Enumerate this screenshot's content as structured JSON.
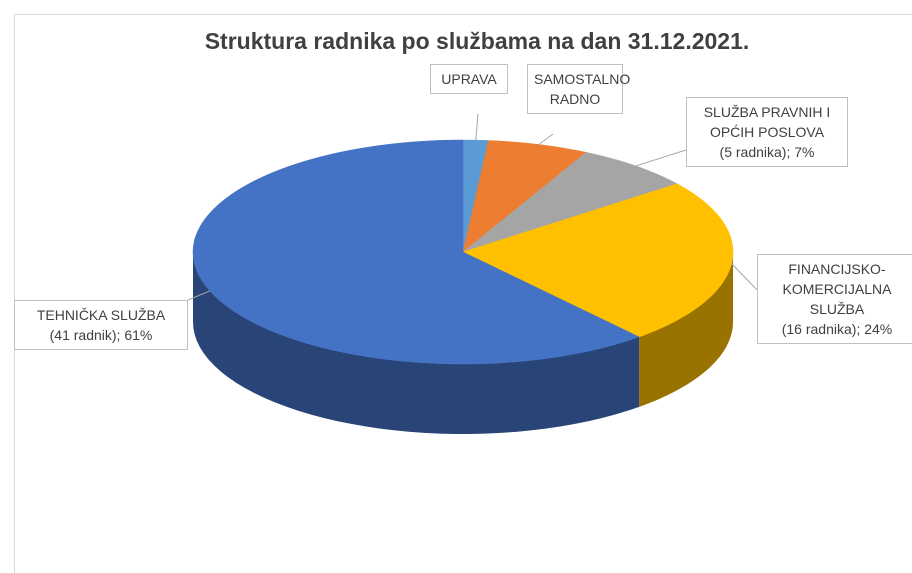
{
  "chart_data": {
    "type": "pie3d",
    "title": "Struktura radnika po službama na dan 31.12.2021.",
    "categories": [
      "UPRAVA",
      "SAMOSTALNO RADNO",
      "SLUŽBA PRAVNIH I OPĆIH POSLOVA",
      "FINANCIJSKO-KOMERCIJALNA SLUŽBA",
      "TEHNIČKA SLUŽBA"
    ],
    "values": [
      1.5,
      6,
      7,
      24,
      61
    ],
    "value_labels": [
      null,
      null,
      "(5 radnika); 7%",
      "(16 radnika); 24%",
      "(41 radnik); 61%"
    ],
    "colors": [
      "#5b9bd5",
      "#ed7d31",
      "#a5a5a5",
      "#ffc000",
      "#4472c4"
    ]
  }
}
